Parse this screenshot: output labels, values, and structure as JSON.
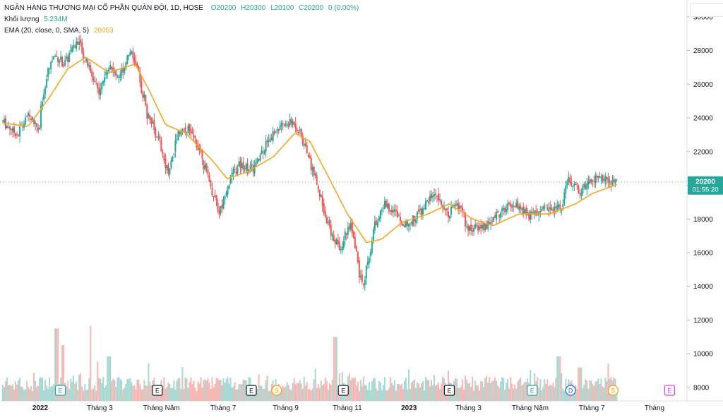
{
  "legend": {
    "title": "NGÂN HÀNG THƯƠNG MẠI CỔ PHẦN QUÂN ĐỘI, 1D, HOSE",
    "open": "O20200",
    "high": "H20300",
    "low": "L20100",
    "close": "C20200",
    "change": "0 (0.00%)",
    "volume_label": "Khối lượng",
    "volume_value": "5.234M",
    "ema_label": "EMA (20, close, 0, SMA, 5)",
    "ema_value": "20053"
  },
  "price_tag": {
    "price": "20200",
    "countdown": "01:55:20"
  },
  "colors": {
    "up": "#26a69a",
    "down": "#ef5350",
    "ema": "#f5a623",
    "up_volume": "#a8d8d2",
    "down_volume": "#f5b7b4"
  },
  "chart_data": {
    "type": "candlestick",
    "y_axis": {
      "ticks": [
        8000,
        10000,
        12000,
        14000,
        16000,
        18000,
        20000,
        22000,
        24000,
        26000,
        28000,
        30000
      ],
      "range": [
        7200,
        31000
      ]
    },
    "x_axis_labels": [
      {
        "label": "2022",
        "date": "2022-01-01"
      },
      {
        "label": "Tháng 3",
        "date": "2022-03-01"
      },
      {
        "label": "Tháng Năm",
        "date": "2022-05-01"
      },
      {
        "label": "Tháng 7",
        "date": "2022-07-01"
      },
      {
        "label": "Tháng 9",
        "date": "2022-09-01"
      },
      {
        "label": "Tháng 11",
        "date": "2022-11-01"
      },
      {
        "label": "2023",
        "date": "2023-01-01"
      },
      {
        "label": "Tháng 3",
        "date": "2023-03-01"
      },
      {
        "label": "Tháng Năm",
        "date": "2023-05-01"
      },
      {
        "label": "Tháng 7",
        "date": "2023-07-01"
      },
      {
        "label": "Tháng",
        "date": "2023-09-01"
      }
    ],
    "date_range": [
      "2021-11-25",
      "2023-07-26"
    ],
    "price_path": [
      [
        "2021-11-25",
        23800
      ],
      [
        "2021-12-10",
        23000
      ],
      [
        "2021-12-20",
        24200
      ],
      [
        "2021-12-31",
        23400
      ],
      [
        "2022-01-08",
        26500
      ],
      [
        "2022-01-15",
        27800
      ],
      [
        "2022-01-25",
        27200
      ],
      [
        "2022-02-08",
        28600
      ],
      [
        "2022-02-18",
        27000
      ],
      [
        "2022-03-01",
        25600
      ],
      [
        "2022-03-10",
        27200
      ],
      [
        "2022-03-20",
        26400
      ],
      [
        "2022-04-01",
        28000
      ],
      [
        "2022-04-10",
        26200
      ],
      [
        "2022-04-18",
        24200
      ],
      [
        "2022-04-28",
        22800
      ],
      [
        "2022-05-08",
        20600
      ],
      [
        "2022-05-18",
        23200
      ],
      [
        "2022-05-28",
        23400
      ],
      [
        "2022-06-08",
        22200
      ],
      [
        "2022-06-20",
        19800
      ],
      [
        "2022-06-28",
        18400
      ],
      [
        "2022-07-08",
        20400
      ],
      [
        "2022-07-18",
        21200
      ],
      [
        "2022-08-01",
        21000
      ],
      [
        "2022-08-15",
        22800
      ],
      [
        "2022-08-29",
        23500
      ],
      [
        "2022-09-10",
        23800
      ],
      [
        "2022-09-20",
        22400
      ],
      [
        "2022-09-28",
        21000
      ],
      [
        "2022-10-08",
        18800
      ],
      [
        "2022-10-15",
        17200
      ],
      [
        "2022-10-25",
        16300
      ],
      [
        "2022-11-05",
        17800
      ],
      [
        "2022-11-12",
        15200
      ],
      [
        "2022-11-17",
        14000
      ],
      [
        "2022-11-28",
        17500
      ],
      [
        "2022-12-08",
        18900
      ],
      [
        "2022-12-18",
        18500
      ],
      [
        "2022-12-30",
        17600
      ],
      [
        "2023-01-12",
        18400
      ],
      [
        "2023-01-28",
        19700
      ],
      [
        "2023-02-08",
        18300
      ],
      [
        "2023-02-20",
        18800
      ],
      [
        "2023-03-01",
        17400
      ],
      [
        "2023-03-20",
        17600
      ],
      [
        "2023-04-01",
        18400
      ],
      [
        "2023-04-15",
        18900
      ],
      [
        "2023-05-01",
        18200
      ],
      [
        "2023-05-20",
        18700
      ],
      [
        "2023-06-01",
        18800
      ],
      [
        "2023-06-08",
        20300
      ],
      [
        "2023-06-20",
        19700
      ],
      [
        "2023-07-05",
        20500
      ],
      [
        "2023-07-20",
        20200
      ]
    ],
    "ema_path": [
      [
        "2021-11-25",
        23700
      ],
      [
        "2021-12-20",
        23500
      ],
      [
        "2022-01-10",
        25200
      ],
      [
        "2022-01-28",
        26900
      ],
      [
        "2022-02-15",
        27600
      ],
      [
        "2022-03-10",
        26700
      ],
      [
        "2022-04-05",
        27200
      ],
      [
        "2022-04-20",
        25500
      ],
      [
        "2022-05-05",
        23600
      ],
      [
        "2022-05-25",
        23100
      ],
      [
        "2022-06-20",
        21500
      ],
      [
        "2022-07-05",
        20400
      ],
      [
        "2022-07-25",
        20800
      ],
      [
        "2022-08-20",
        21700
      ],
      [
        "2022-09-10",
        23100
      ],
      [
        "2022-09-25",
        22600
      ],
      [
        "2022-10-15",
        20300
      ],
      [
        "2022-11-01",
        18300
      ],
      [
        "2022-11-20",
        16600
      ],
      [
        "2022-12-05",
        16800
      ],
      [
        "2022-12-25",
        17800
      ],
      [
        "2023-01-20",
        18300
      ],
      [
        "2023-02-10",
        18900
      ],
      [
        "2023-03-05",
        18000
      ],
      [
        "2023-03-25",
        17600
      ],
      [
        "2023-04-20",
        18300
      ],
      [
        "2023-05-20",
        18300
      ],
      [
        "2023-06-15",
        18900
      ],
      [
        "2023-07-01",
        19500
      ],
      [
        "2023-07-26",
        20053
      ]
    ],
    "volume_range": [
      0,
      40000000
    ],
    "volume_spikes": [
      [
        "2022-01-18",
        26000000
      ],
      [
        "2022-01-24",
        20000000
      ],
      [
        "2022-02-20",
        27000000
      ],
      [
        "2022-02-27",
        14000000
      ],
      [
        "2022-03-10",
        16000000
      ],
      [
        "2022-10-20",
        23000000
      ],
      [
        "2023-05-30",
        16000000
      ],
      [
        "2023-06-20",
        12000000
      ]
    ],
    "last_close": 20200
  },
  "event_markers": [
    {
      "letter": "E",
      "date": "2022-01-21",
      "color": "#26a69a"
    },
    {
      "letter": "E",
      "date": "2022-04-27",
      "color": "#131722"
    },
    {
      "letter": "E",
      "date": "2022-07-29",
      "color": "#131722"
    },
    {
      "letter": "S",
      "date": "2022-08-23",
      "color": "#ff9800"
    },
    {
      "letter": "E",
      "date": "2022-10-28",
      "color": "#131722"
    },
    {
      "letter": "E",
      "date": "2023-02-10",
      "color": "#131722"
    },
    {
      "letter": "E",
      "date": "2023-05-03",
      "color": "#26a69a"
    },
    {
      "letter": "D",
      "date": "2023-06-10",
      "color": "#2962ff"
    },
    {
      "letter": "S",
      "date": "2023-07-22",
      "color": "#ff9800"
    },
    {
      "letter": "E",
      "date": "2023-09-16",
      "color": "#e040fb"
    }
  ]
}
